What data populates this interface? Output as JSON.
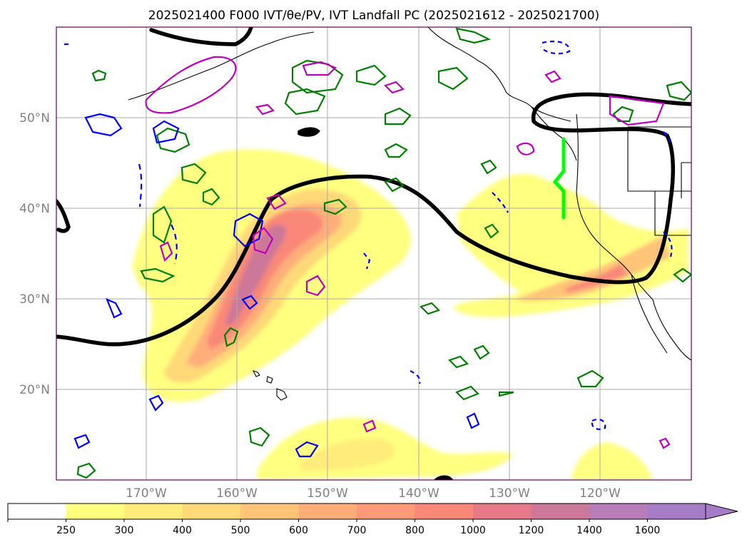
{
  "title": "2025021400 F000 IVT/θe/PV, IVT Landfall PC (2025021612 - 2025021700)",
  "map": {
    "lat_labels": [
      "50°N",
      "40°N",
      "30°N",
      "20°N"
    ],
    "lon_labels": [
      "170°W",
      "160°W",
      "150°W",
      "140°W",
      "130°W",
      "120°W"
    ],
    "lat_ticks": [
      50,
      40,
      30,
      20
    ],
    "lon_ticks": [
      -170,
      -160,
      -150,
      -140,
      -130,
      -120
    ],
    "lat_range": [
      10,
      60
    ],
    "lon_range": [
      -180,
      -110
    ],
    "grid": true
  },
  "colorbar": {
    "levels": [
      "250",
      "300",
      "400",
      "500",
      "600",
      "700",
      "800",
      "1000",
      "1200",
      "1400",
      "1600"
    ],
    "colors": [
      "#ffffff",
      "#ffff80",
      "#ffec7a",
      "#ffd878",
      "#ffc478",
      "#ffae7a",
      "#ff9a78",
      "#f98878",
      "#e67a88",
      "#cc7898",
      "#b87cb8",
      "#a67cc8"
    ],
    "extend": "max"
  },
  "colors": {
    "ivt_low": "#ffff80",
    "ivt_high": "#f08078",
    "theta_e_contour": "#000000",
    "pv_contour": "#008000",
    "negative_contour": "#0000ff",
    "magenta_contour": "#c000c0",
    "landfall_marker": "#00ff00",
    "grid": "#aaaaaa"
  }
}
